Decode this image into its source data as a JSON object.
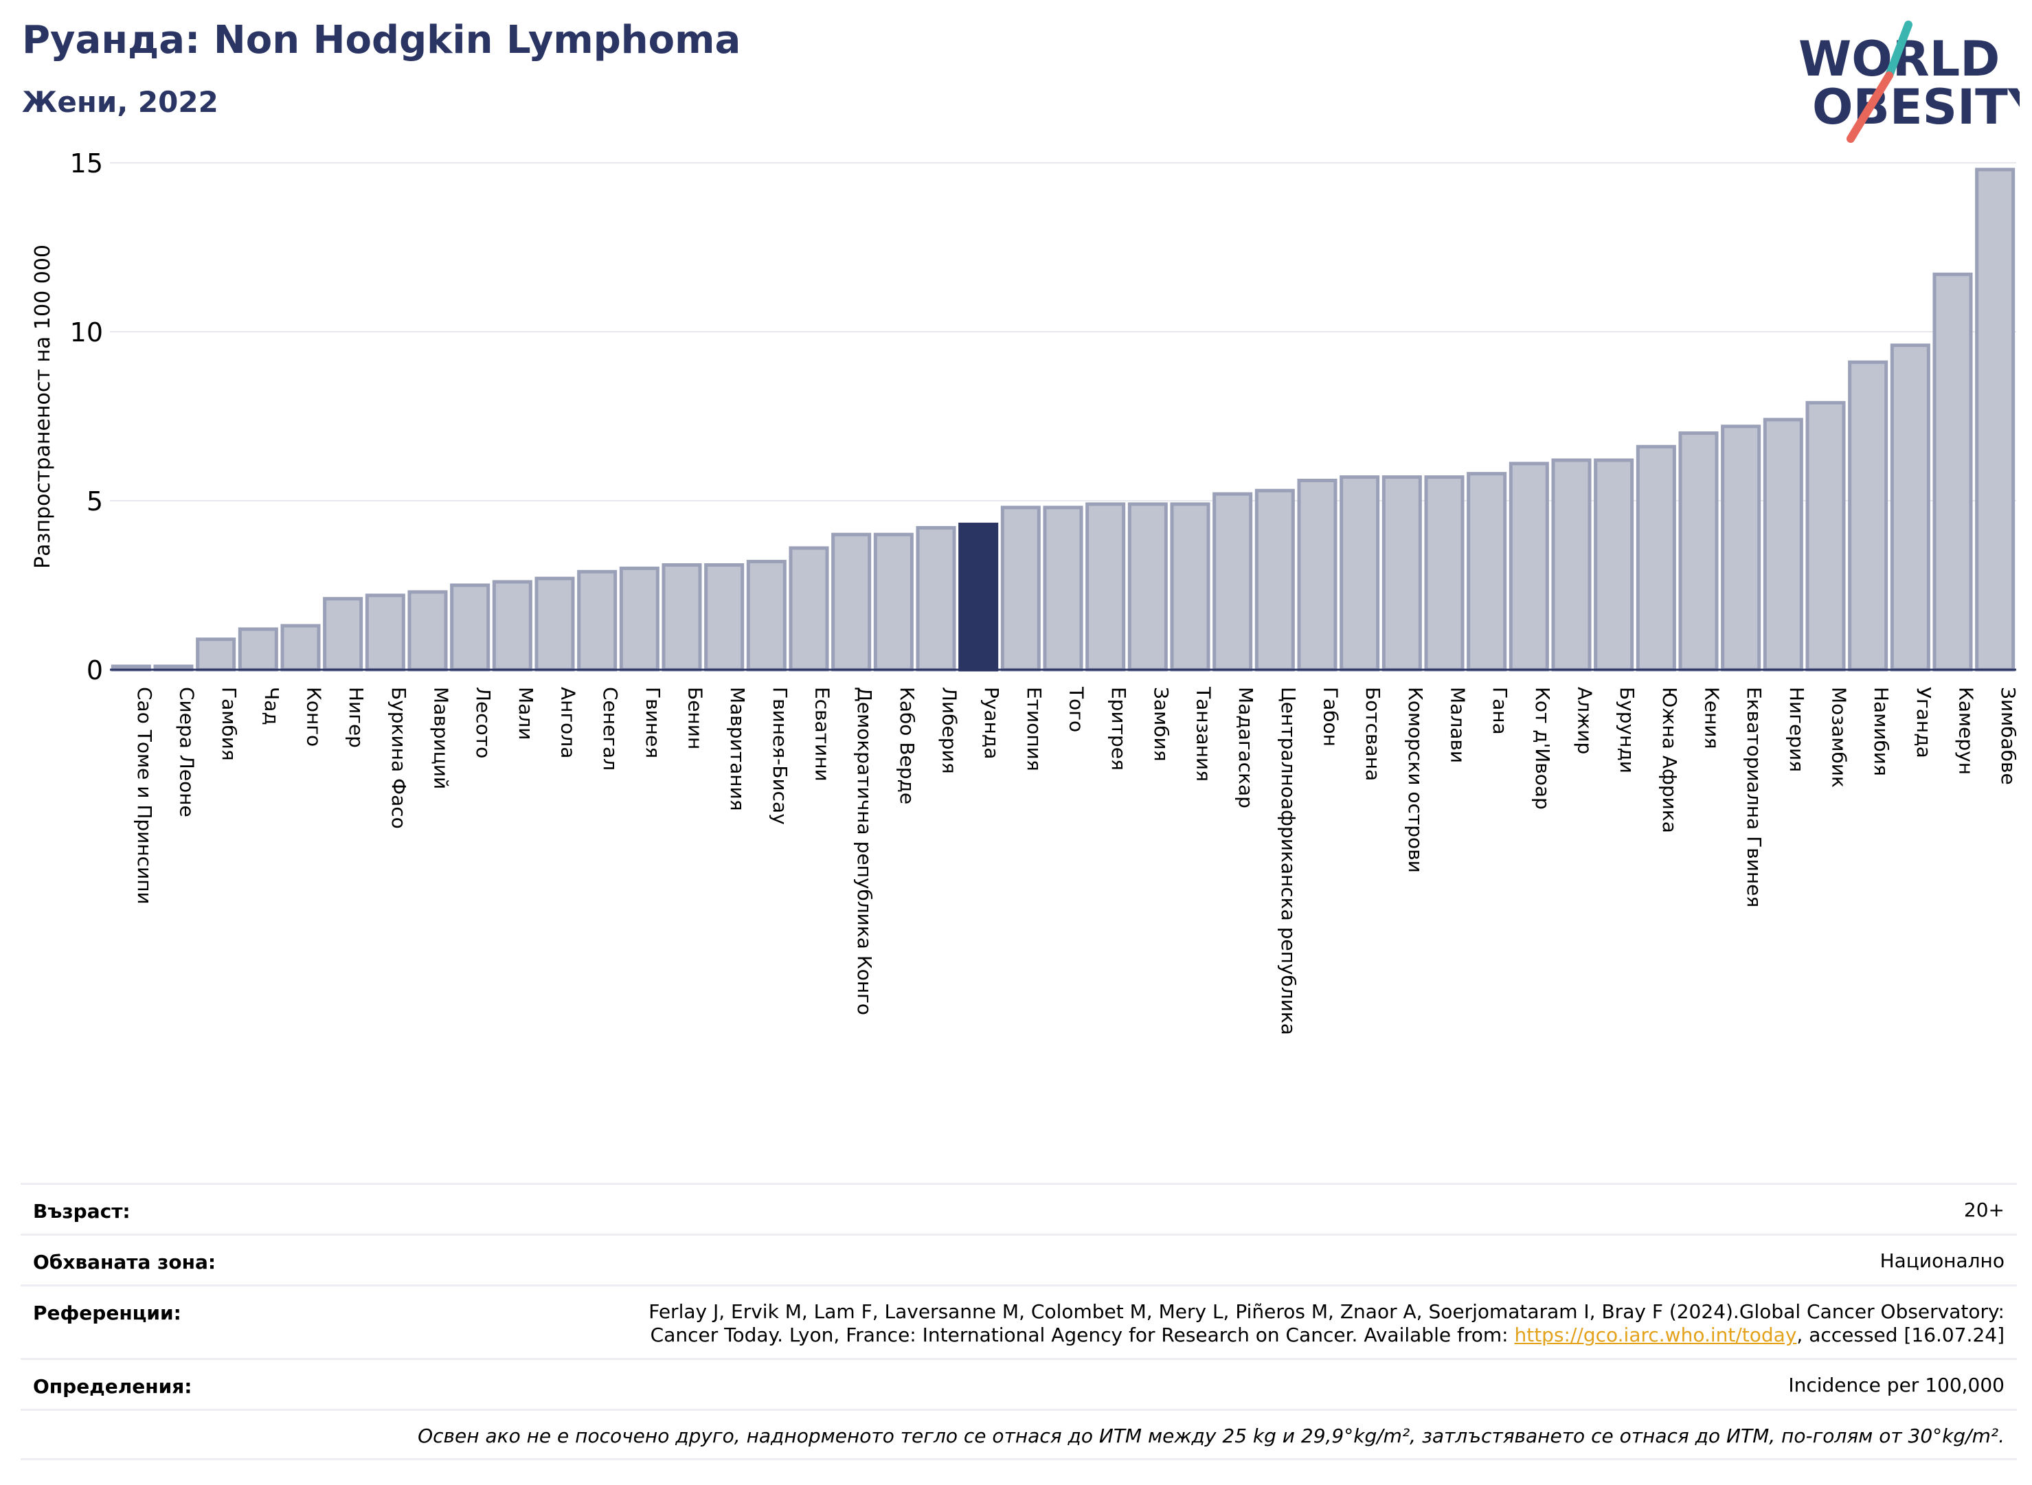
{
  "header": {
    "title": "Руанда: Non Hodgkin Lymphoma",
    "subtitle": "Жени, 2022"
  },
  "logo": {
    "line1": "WORLD",
    "line2": "OBESITY",
    "colors": {
      "text": "#2b3563",
      "teal": "#3ab5b0",
      "coral": "#e8665a"
    }
  },
  "chart_data": {
    "type": "bar",
    "ylabel": "Разпространеност  на 100 000",
    "ylim": [
      0,
      15
    ],
    "yticks": [
      0,
      5,
      10,
      15
    ],
    "grid": true,
    "highlight": "Руанда",
    "colors": {
      "bar": "#c0c3d0",
      "bar_edge": "#9aa0b8",
      "highlight": "#2b3563"
    },
    "categories": [
      "Сао Томе и Принсипи",
      "Сиера Леоне",
      "Гамбия",
      "Чад",
      "Конго",
      "Нигер",
      "Буркина Фасо",
      "Мавриций",
      "Лесото",
      "Мали",
      "Ангола",
      "Сенегал",
      "Гвинея",
      "Бенин",
      "Мавритания",
      "Гвинея-Бисау",
      "Есватини",
      "Демократична република Конго",
      "Кабо Верде",
      "Либерия",
      "Руанда",
      "Етиопия",
      "Того",
      "Еритрея",
      "Замбия",
      "Танзания",
      "Мадагаскар",
      "Централноафриканска република",
      "Габон",
      "Ботсвана",
      "Коморски острови",
      "Малави",
      "Гана",
      "Кот д'Ивоар",
      "Алжир",
      "Бурунди",
      "Южна Африка",
      "Кения",
      "Екваториална Гвинея",
      "Нигерия",
      "Мозамбик",
      "Намибия",
      "Уганда",
      "Камерун",
      "Зимбабве"
    ],
    "values": [
      0.1,
      0.1,
      0.9,
      1.2,
      1.3,
      2.1,
      2.2,
      2.3,
      2.5,
      2.6,
      2.7,
      2.9,
      3.0,
      3.1,
      3.1,
      3.2,
      3.6,
      4.0,
      4.0,
      4.2,
      4.3,
      4.8,
      4.8,
      4.9,
      4.9,
      4.9,
      5.2,
      5.3,
      5.6,
      5.7,
      5.7,
      5.7,
      5.8,
      6.1,
      6.2,
      6.2,
      6.6,
      7.0,
      7.2,
      7.4,
      7.9,
      9.1,
      9.6,
      11.7,
      14.8
    ]
  },
  "footer": {
    "age_label": "Възраст:",
    "age_value": "20+",
    "area_label": "Обхваната зона:",
    "area_value": "Национално",
    "ref_label": "Референции:",
    "ref_text_1": "Ferlay J, Ervik M, Lam F, Laversanne M, Colombet M, Mery L, Piñeros M, Znaor A, Soerjomataram I, Bray F (2024).Global Cancer Observatory:",
    "ref_text_2": "Cancer Today. Lyon, France: International Agency for Research on Cancer. Available from: ",
    "ref_link": "https://gco.iarc.who.int/today",
    "ref_text_3": ", accessed [16.07.24]",
    "def_label": "Определения:",
    "def_value": "Incidence per 100,000",
    "note": "Освен ако не е посочено друго, наднорменото тегло се отнася до ИТМ между 25 kg и 29,9°kg/m², затлъстяването се отнася до ИТМ, по-голям от 30°kg/m²."
  }
}
